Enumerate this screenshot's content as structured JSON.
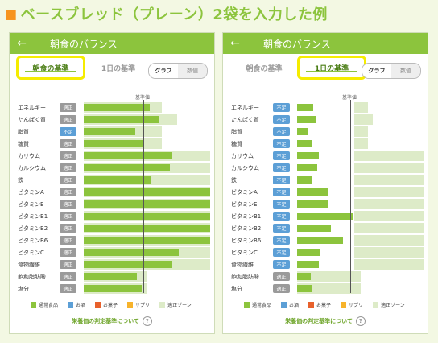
{
  "page_title": "ベースブレッド（プレーン）2袋を入力した例",
  "title_square": "■",
  "colors": {
    "green": "#8cc43d",
    "zone": "#ddebc8",
    "ok_badge": "#9a9a9a",
    "low_badge": "#5c9fd6",
    "highlight": "#f5ec00",
    "title_square": "#f7941d"
  },
  "panels": [
    {
      "back_icon": "←",
      "title": "朝食のバランス",
      "tabs": [
        "朝食の基準",
        "1日の基準"
      ],
      "active_tab": 0,
      "toggle": [
        "グラフ",
        "数値"
      ],
      "ref_label": "基準値",
      "rows": [
        {
          "name": "エネルギー",
          "badge": "適正",
          "status": "ok",
          "value": 0.52,
          "zone_end": 0.62
        },
        {
          "name": "たんぱく質",
          "badge": "適正",
          "status": "ok",
          "value": 0.6,
          "zone_end": 0.74
        },
        {
          "name": "脂質",
          "badge": "不足",
          "status": "low",
          "value": 0.41,
          "zone_end": 0.62
        },
        {
          "name": "糖質",
          "badge": "適正",
          "status": "ok",
          "value": 0.48,
          "zone_end": 0.62
        },
        {
          "name": "カリウム",
          "badge": "適正",
          "status": "ok",
          "value": 0.7,
          "zone_end": 1.0
        },
        {
          "name": "カルシウム",
          "badge": "適正",
          "status": "ok",
          "value": 0.68,
          "zone_end": 1.0
        },
        {
          "name": "鉄",
          "badge": "適正",
          "status": "ok",
          "value": 0.53,
          "zone_end": 1.0
        },
        {
          "name": "ビタミンA",
          "badge": "適正",
          "status": "ok",
          "value": 1.0,
          "zone_end": 1.0
        },
        {
          "name": "ビタミンE",
          "badge": "適正",
          "status": "ok",
          "value": 1.0,
          "zone_end": 1.0
        },
        {
          "name": "ビタミンB1",
          "badge": "適正",
          "status": "ok",
          "value": 1.0,
          "zone_end": 1.0
        },
        {
          "name": "ビタミンB2",
          "badge": "適正",
          "status": "ok",
          "value": 1.0,
          "zone_end": 1.0
        },
        {
          "name": "ビタミンB6",
          "badge": "適正",
          "status": "ok",
          "value": 1.0,
          "zone_end": 1.0
        },
        {
          "name": "ビタミンC",
          "badge": "適正",
          "status": "ok",
          "value": 0.75,
          "zone_end": 1.0
        },
        {
          "name": "食物繊維",
          "badge": "適正",
          "status": "ok",
          "value": 0.7,
          "zone_end": 1.0
        },
        {
          "name": "飽和脂肪酸",
          "badge": "適正",
          "status": "ok",
          "value": 0.42,
          "zone_end": 0.5
        },
        {
          "name": "塩分",
          "badge": "適正",
          "status": "ok",
          "value": 0.46,
          "zone_end": 0.5
        }
      ],
      "legend": [
        {
          "label": "通常食品",
          "color": "#8cc43d"
        },
        {
          "label": "お酒",
          "color": "#5c9fd6"
        },
        {
          "label": "お菓子",
          "color": "#e8612c"
        },
        {
          "label": "サプリ",
          "color": "#f7b32b"
        },
        {
          "label": "適正ゾーン",
          "color": "#ddebc8"
        }
      ],
      "footer": "栄養価の判定基準について",
      "help_icon": "?"
    },
    {
      "back_icon": "←",
      "title": "朝食のバランス",
      "tabs": [
        "朝食の基準",
        "1日の基準"
      ],
      "active_tab": 1,
      "toggle": [
        "グラフ",
        "数値"
      ],
      "ref_label": "基準値",
      "rows": [
        {
          "name": "エネルギー",
          "badge": "不足",
          "status": "low",
          "value": 0.13,
          "zone_start": 0.45,
          "zone_end": 0.56
        },
        {
          "name": "たんぱく質",
          "badge": "不足",
          "status": "low",
          "value": 0.15,
          "zone_start": 0.45,
          "zone_end": 0.6
        },
        {
          "name": "脂質",
          "badge": "不足",
          "status": "low",
          "value": 0.09,
          "zone_start": 0.45,
          "zone_end": 0.56
        },
        {
          "name": "糖質",
          "badge": "不足",
          "status": "low",
          "value": 0.12,
          "zone_start": 0.45,
          "zone_end": 0.56
        },
        {
          "name": "カリウム",
          "badge": "不足",
          "status": "low",
          "value": 0.17,
          "zone_start": 0.45,
          "zone_end": 1.0
        },
        {
          "name": "カルシウム",
          "badge": "不足",
          "status": "low",
          "value": 0.16,
          "zone_start": 0.45,
          "zone_end": 1.0
        },
        {
          "name": "鉄",
          "badge": "不足",
          "status": "low",
          "value": 0.12,
          "zone_start": 0.45,
          "zone_end": 1.0
        },
        {
          "name": "ビタミンA",
          "badge": "不足",
          "status": "low",
          "value": 0.24,
          "zone_start": 0.45,
          "zone_end": 1.0
        },
        {
          "name": "ビタミンE",
          "badge": "不足",
          "status": "low",
          "value": 0.24,
          "zone_start": 0.45,
          "zone_end": 1.0
        },
        {
          "name": "ビタミンB1",
          "badge": "不足",
          "status": "low",
          "value": 0.44,
          "zone_start": 0.45,
          "zone_end": 1.0
        },
        {
          "name": "ビタミンB2",
          "badge": "不足",
          "status": "low",
          "value": 0.27,
          "zone_start": 0.45,
          "zone_end": 1.0
        },
        {
          "name": "ビタミンB6",
          "badge": "不足",
          "status": "low",
          "value": 0.36,
          "zone_start": 0.45,
          "zone_end": 1.0
        },
        {
          "name": "ビタミンC",
          "badge": "不足",
          "status": "low",
          "value": 0.18,
          "zone_start": 0.45,
          "zone_end": 1.0
        },
        {
          "name": "食物繊維",
          "badge": "不足",
          "status": "low",
          "value": 0.17,
          "zone_start": 0.45,
          "zone_end": 1.0
        },
        {
          "name": "飽和脂肪酸",
          "badge": "適正",
          "status": "ok",
          "value": 0.11,
          "zone_start": 0.0,
          "zone_end": 0.5
        },
        {
          "name": "塩分",
          "badge": "適正",
          "status": "ok",
          "value": 0.12,
          "zone_start": 0.0,
          "zone_end": 0.5
        }
      ],
      "legend": [
        {
          "label": "通常食品",
          "color": "#8cc43d"
        },
        {
          "label": "お酒",
          "color": "#5c9fd6"
        },
        {
          "label": "お菓子",
          "color": "#e8612c"
        },
        {
          "label": "サプリ",
          "color": "#f7b32b"
        },
        {
          "label": "適正ゾーン",
          "color": "#ddebc8"
        }
      ],
      "footer": "栄養価の判定基準について",
      "help_icon": "?"
    }
  ]
}
